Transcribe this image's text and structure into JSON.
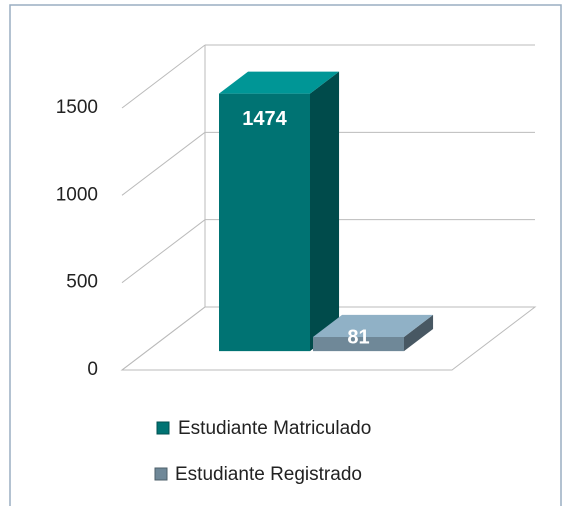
{
  "chart_data": {
    "type": "bar",
    "categories": [
      null
    ],
    "series": [
      {
        "name": "Estudiante Matriculado",
        "color": "#007373",
        "values": [
          1474
        ]
      },
      {
        "name": "Estudiante Registrado",
        "color": "#6f8898",
        "values": [
          81
        ]
      }
    ],
    "ylim": [
      0,
      1500
    ],
    "yticks": [
      0,
      500,
      1000,
      1500
    ],
    "grid": true
  }
}
